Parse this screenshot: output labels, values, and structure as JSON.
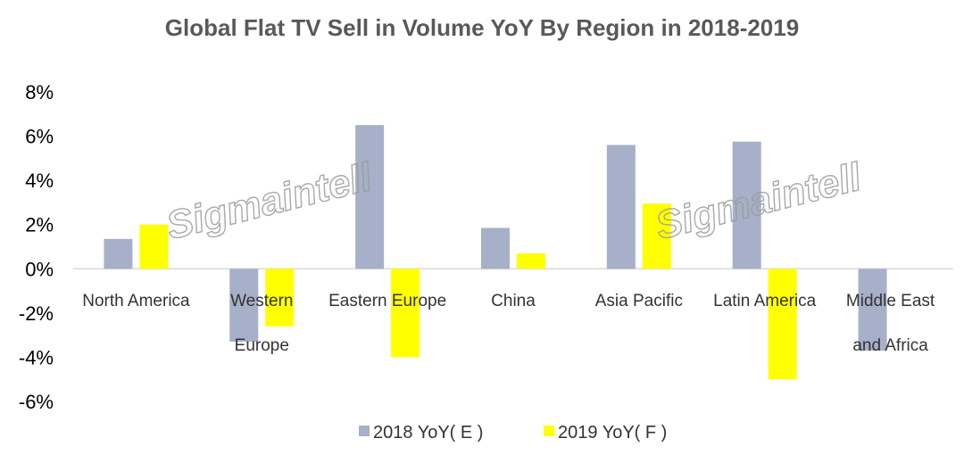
{
  "chart_data": {
    "type": "bar",
    "title": "Global Flat TV Sell in Volume YoY By Region in 2018-2019",
    "categories": [
      [
        "North America"
      ],
      [
        "Western",
        "Europe"
      ],
      [
        "Eastern Europe"
      ],
      [
        "China"
      ],
      [
        "Asia Pacific"
      ],
      [
        "Latin America"
      ],
      [
        "Middle East",
        "and Africa"
      ]
    ],
    "series": [
      {
        "name": "2018 YoY( E )",
        "color": "#a6b0c8",
        "values": [
          1.35,
          -3.3,
          6.5,
          1.85,
          5.6,
          5.75,
          -3.7
        ]
      },
      {
        "name": "2019 YoY( F )",
        "color": "#ffff00",
        "values": [
          2.0,
          -2.6,
          -4.0,
          0.7,
          2.95,
          -5.0,
          null
        ]
      }
    ],
    "yTicks": [
      "8%",
      "6%",
      "4%",
      "2%",
      "0%",
      "-2%",
      "-4%",
      "-6%"
    ],
    "ylim": [
      -6,
      8
    ],
    "ylabel": "",
    "xlabel": "",
    "legend_position": "bottom",
    "grid": false,
    "watermarks": [
      "Sigmaintell",
      "Sigmaintell"
    ],
    "colors": {
      "title": "#595959",
      "axis": "#d9d9d9",
      "text": "#333333"
    }
  }
}
